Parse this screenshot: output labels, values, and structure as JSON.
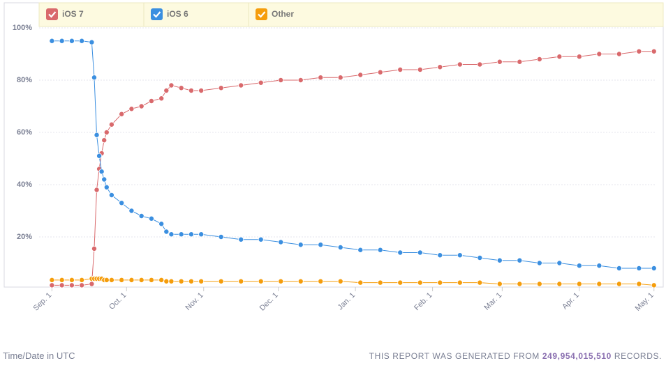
{
  "chart_data": {
    "type": "line",
    "x": [
      0,
      4,
      8,
      12,
      16,
      17,
      18,
      19,
      20,
      21,
      22,
      24,
      28,
      32,
      36,
      40,
      44,
      46,
      48,
      52,
      56,
      60,
      68,
      76,
      84,
      92,
      100,
      108,
      116,
      124,
      132,
      140,
      148,
      156,
      164,
      172,
      180,
      188,
      196,
      204,
      212,
      220,
      228,
      236,
      242
    ],
    "series": [
      {
        "name": "iOS 7",
        "color": "#d9696c",
        "values": [
          1.5,
          1.5,
          1.5,
          1.5,
          2,
          15.5,
          38,
          46,
          52,
          57,
          60,
          63,
          67,
          69,
          70,
          72,
          73,
          76,
          78,
          77,
          76,
          76,
          77,
          78,
          79,
          80,
          80,
          81,
          81,
          82,
          83,
          84,
          84,
          85,
          86,
          86,
          87,
          87,
          88,
          89,
          89,
          90,
          90,
          91,
          91
        ]
      },
      {
        "name": "iOS 6",
        "color": "#3b8fe0",
        "values": [
          95,
          95,
          95,
          95,
          94.5,
          81,
          59,
          51,
          45,
          42,
          39,
          36,
          33,
          30,
          28,
          27,
          25,
          22,
          21,
          21,
          21,
          21,
          20,
          19,
          19,
          18,
          17,
          17,
          16,
          15,
          15,
          14,
          14,
          13,
          13,
          12,
          11,
          11,
          10,
          10,
          9,
          9,
          8,
          8,
          8
        ]
      },
      {
        "name": "Other",
        "color": "#f59d0c",
        "values": [
          3.5,
          3.5,
          3.5,
          3.5,
          4,
          4,
          4,
          4,
          4,
          3.5,
          3.5,
          3.5,
          3.5,
          3.5,
          3.5,
          3.5,
          3.5,
          3,
          3,
          3,
          3,
          3,
          3,
          3,
          3,
          3,
          3,
          3,
          3,
          2.5,
          2.5,
          2.5,
          2.5,
          2.5,
          2.5,
          2.5,
          2,
          2,
          2,
          2,
          2,
          2,
          2,
          2,
          1.5
        ]
      }
    ],
    "xlim": [
      -6,
      246
    ],
    "xticks": [
      {
        "value": 0,
        "label": "Sep. 1"
      },
      {
        "value": 30,
        "label": "Oct. 1"
      },
      {
        "value": 61,
        "label": "Nov. 1"
      },
      {
        "value": 91,
        "label": "Dec. 1"
      },
      {
        "value": 122,
        "label": "Jan. 1"
      },
      {
        "value": 153,
        "label": "Feb. 1"
      },
      {
        "value": 181,
        "label": "Mar. 1"
      },
      {
        "value": 212,
        "label": "Apr. 1"
      },
      {
        "value": 242,
        "label": "May. 1"
      }
    ],
    "ylim": [
      0,
      100
    ],
    "yticks": [
      {
        "value": 20,
        "label": "20%"
      },
      {
        "value": 40,
        "label": "40%"
      },
      {
        "value": 60,
        "label": "60%"
      },
      {
        "value": 80,
        "label": "80%"
      },
      {
        "value": 100,
        "label": "100%"
      }
    ],
    "grid": true,
    "xlabel": "Time/Date in UTC",
    "footnote": {
      "prefix": "THIS REPORT WAS GENERATED FROM",
      "records": "249,954,015,510",
      "suffix": "RECORDS."
    }
  }
}
